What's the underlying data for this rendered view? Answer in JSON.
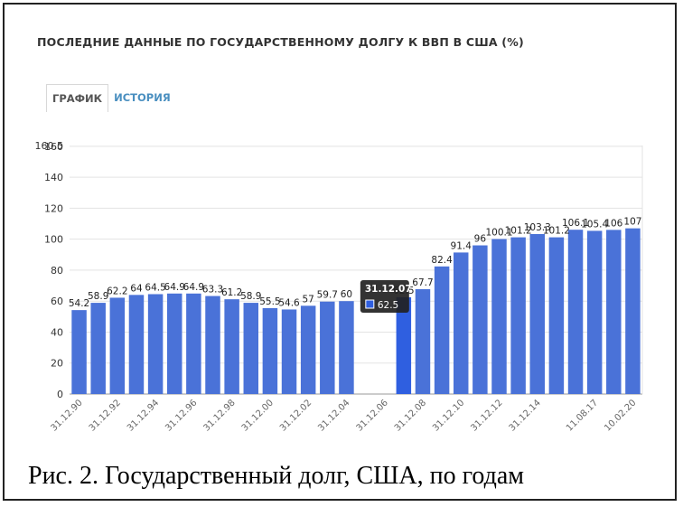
{
  "page": {
    "title": "ПОСЛЕДНИЕ ДАННЫЕ ПО ГОСУДАРСТВЕННОМУ ДОЛГУ К ВВП В США (%)",
    "tabs": [
      {
        "label": "ГРАФИК",
        "active": true
      },
      {
        "label": "ИСТОРИЯ",
        "active": false
      }
    ],
    "caption": "Рис. 2. Государственный долг, США, по годам"
  },
  "colors": {
    "bar": "#4a72d8",
    "bar_highlight": "#2f5fe0",
    "tab_history": "#4a8fc0",
    "tooltip_bg": "#222222"
  },
  "chart_data": {
    "type": "bar",
    "categories": [
      "1990",
      "1991",
      "1992",
      "1993",
      "1994",
      "1995",
      "1996",
      "1997",
      "1998",
      "1999",
      "2000",
      "2001",
      "2002",
      "2003",
      "2004",
      "2005",
      "2006",
      "2007",
      "2008",
      "2009",
      "2010",
      "2011",
      "2012",
      "2013",
      "2014",
      "2015",
      "2016",
      "2017",
      "2018",
      "2019"
    ],
    "values": [
      54.2,
      58.9,
      62.2,
      64,
      64.5,
      64.9,
      64.9,
      63.3,
      61.2,
      58.9,
      55.5,
      54.6,
      57,
      59.7,
      60,
      null,
      null,
      62.5,
      67.7,
      82.4,
      91.4,
      96,
      100.1,
      101.2,
      103.3,
      101.2,
      106.1,
      105.4,
      106,
      107
    ],
    "value_labels": [
      "54.2",
      "58.9",
      "62.2",
      "64",
      "64.5",
      "64.9",
      "64.9",
      "63.3",
      "61.2",
      "58.9",
      "55.5",
      "54.6",
      "57",
      "59.7",
      "60",
      "",
      "",
      "62.5",
      "67.7",
      "82.4",
      "91.4",
      "96",
      "100.1",
      "101.2",
      "103.3",
      "101.2",
      "106.1",
      "105.4",
      "106",
      "107"
    ],
    "x_tick_labels": [
      "31.12.90",
      "31.12.92",
      "31.12.94",
      "31.12.96",
      "31.12.98",
      "31.12.00",
      "31.12.02",
      "31.12.04",
      "31.12.06",
      "31.12.08",
      "31.12.10",
      "31.12.12",
      "31.12.14",
      "11.08.17",
      "10.02.20"
    ],
    "x_tick_positions": [
      0,
      2,
      4,
      6,
      8,
      10,
      12,
      14,
      16,
      18,
      20,
      22,
      24,
      27,
      29
    ],
    "y_ticks": [
      "0",
      "20",
      "40",
      "60",
      "80",
      "100",
      "120",
      "140",
      "160"
    ],
    "y_top_label": "160.5",
    "ylim": [
      0,
      160.5
    ],
    "grid": true,
    "highlight_index": 17,
    "tooltip": {
      "date": "31.12.07",
      "value": "62.5"
    },
    "xlabel": "",
    "ylabel": ""
  }
}
